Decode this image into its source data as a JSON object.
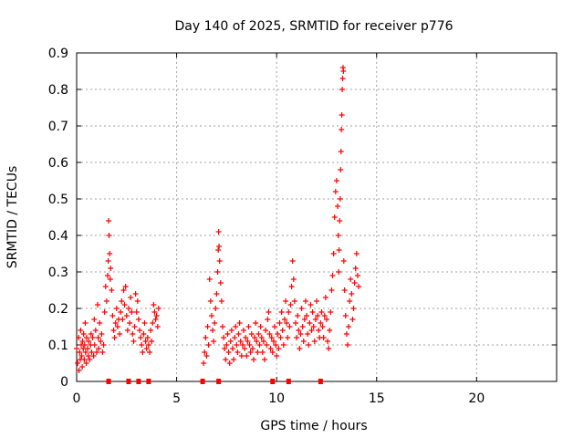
{
  "chart_data": {
    "type": "scatter",
    "title": "Day 140 of 2025, SRMTID for receiver p776",
    "xlabel": "GPS time / hours",
    "ylabel": "SRMTID / TECUs",
    "xlim": [
      0,
      24
    ],
    "ylim": [
      0,
      0.9
    ],
    "xticks": [
      "0",
      "5",
      "10",
      "15",
      "20"
    ],
    "yticks": [
      "0",
      "0.1",
      "0.2",
      "0.3",
      "0.4",
      "0.5",
      "0.6",
      "0.7",
      "0.8",
      "0.9"
    ],
    "grid": true,
    "marker": "plus",
    "color": "#ff0000",
    "series": [
      {
        "name": "SRMTID p776",
        "points": [
          [
            0.0,
            0.09
          ],
          [
            0.05,
            0.05
          ],
          [
            0.1,
            0.12
          ],
          [
            0.12,
            0.03
          ],
          [
            0.15,
            0.08
          ],
          [
            0.18,
            0.06
          ],
          [
            0.2,
            0.14
          ],
          [
            0.23,
            0.1
          ],
          [
            0.25,
            0.07
          ],
          [
            0.28,
            0.04
          ],
          [
            0.3,
            0.11
          ],
          [
            0.33,
            0.09
          ],
          [
            0.35,
            0.13
          ],
          [
            0.38,
            0.06
          ],
          [
            0.4,
            0.1
          ],
          [
            0.43,
            0.16
          ],
          [
            0.45,
            0.08
          ],
          [
            0.48,
            0.05
          ],
          [
            0.5,
            0.12
          ],
          [
            0.55,
            0.09
          ],
          [
            0.58,
            0.07
          ],
          [
            0.6,
            0.11
          ],
          [
            0.65,
            0.06
          ],
          [
            0.7,
            0.1
          ],
          [
            0.72,
            0.13
          ],
          [
            0.75,
            0.08
          ],
          [
            0.8,
            0.12
          ],
          [
            0.85,
            0.07
          ],
          [
            0.88,
            0.17
          ],
          [
            0.9,
            0.1
          ],
          [
            0.95,
            0.14
          ],
          [
            1.0,
            0.08
          ],
          [
            1.05,
            0.21
          ],
          [
            1.08,
            0.12
          ],
          [
            1.1,
            0.09
          ],
          [
            1.15,
            0.16
          ],
          [
            1.2,
            0.11
          ],
          [
            1.25,
            0.13
          ],
          [
            1.3,
            0.08
          ],
          [
            1.35,
            0.1
          ],
          [
            1.4,
            0.19
          ],
          [
            1.45,
            0.26
          ],
          [
            1.5,
            0.22
          ],
          [
            1.55,
            0.29
          ],
          [
            1.58,
            0.33
          ],
          [
            1.6,
            0.44
          ],
          [
            1.62,
            0.4
          ],
          [
            1.65,
            0.35
          ],
          [
            1.68,
            0.28
          ],
          [
            1.7,
            0.31
          ],
          [
            1.75,
            0.25
          ],
          [
            1.8,
            0.18
          ],
          [
            1.85,
            0.14
          ],
          [
            1.9,
            0.12
          ],
          [
            1.95,
            0.16
          ],
          [
            2.0,
            0.2
          ],
          [
            2.05,
            0.15
          ],
          [
            2.1,
            0.17
          ],
          [
            2.15,
            0.13
          ],
          [
            2.2,
            0.19
          ],
          [
            2.25,
            0.22
          ],
          [
            2.3,
            0.17
          ],
          [
            2.35,
            0.25
          ],
          [
            2.4,
            0.21
          ],
          [
            2.45,
            0.26
          ],
          [
            2.5,
            0.18
          ],
          [
            2.55,
            0.14
          ],
          [
            2.6,
            0.2
          ],
          [
            2.65,
            0.16
          ],
          [
            2.7,
            0.23
          ],
          [
            2.75,
            0.19
          ],
          [
            2.8,
            0.13
          ],
          [
            2.85,
            0.11
          ],
          [
            2.9,
            0.15
          ],
          [
            2.95,
            0.24
          ],
          [
            3.0,
            0.19
          ],
          [
            3.05,
            0.22
          ],
          [
            3.1,
            0.17
          ],
          [
            3.15,
            0.14
          ],
          [
            3.2,
            0.12
          ],
          [
            3.25,
            0.1
          ],
          [
            3.3,
            0.08
          ],
          [
            3.35,
            0.13
          ],
          [
            3.4,
            0.16
          ],
          [
            3.45,
            0.11
          ],
          [
            3.5,
            0.09
          ],
          [
            3.55,
            0.12
          ],
          [
            3.6,
            0.1
          ],
          [
            3.65,
            0.08
          ],
          [
            3.7,
            0.14
          ],
          [
            3.75,
            0.11
          ],
          [
            3.8,
            0.16
          ],
          [
            3.85,
            0.21
          ],
          [
            3.9,
            0.19
          ],
          [
            3.95,
            0.17
          ],
          [
            4.0,
            0.18
          ],
          [
            4.05,
            0.15
          ],
          [
            4.1,
            0.2
          ],
          [
            6.35,
            0.05
          ],
          [
            6.4,
            0.08
          ],
          [
            6.45,
            0.12
          ],
          [
            6.5,
            0.07
          ],
          [
            6.55,
            0.15
          ],
          [
            6.6,
            0.1
          ],
          [
            6.65,
            0.28
          ],
          [
            6.7,
            0.22
          ],
          [
            6.75,
            0.18
          ],
          [
            6.8,
            0.14
          ],
          [
            6.85,
            0.11
          ],
          [
            6.9,
            0.16
          ],
          [
            6.95,
            0.2
          ],
          [
            7.0,
            0.24
          ],
          [
            7.05,
            0.3
          ],
          [
            7.08,
            0.36
          ],
          [
            7.1,
            0.41
          ],
          [
            7.12,
            0.37
          ],
          [
            7.15,
            0.33
          ],
          [
            7.2,
            0.27
          ],
          [
            7.25,
            0.22
          ],
          [
            7.3,
            0.15
          ],
          [
            7.35,
            0.12
          ],
          [
            7.4,
            0.09
          ],
          [
            7.45,
            0.06
          ],
          [
            7.5,
            0.1
          ],
          [
            7.55,
            0.13
          ],
          [
            7.6,
            0.08
          ],
          [
            7.65,
            0.05
          ],
          [
            7.7,
            0.11
          ],
          [
            7.75,
            0.14
          ],
          [
            7.8,
            0.09
          ],
          [
            7.85,
            0.06
          ],
          [
            7.9,
            0.12
          ],
          [
            7.95,
            0.15
          ],
          [
            8.0,
            0.1
          ],
          [
            8.05,
            0.08
          ],
          [
            8.1,
            0.13
          ],
          [
            8.15,
            0.16
          ],
          [
            8.2,
            0.11
          ],
          [
            8.25,
            0.07
          ],
          [
            8.3,
            0.1
          ],
          [
            8.35,
            0.14
          ],
          [
            8.4,
            0.09
          ],
          [
            8.45,
            0.12
          ],
          [
            8.5,
            0.07
          ],
          [
            8.55,
            0.11
          ],
          [
            8.6,
            0.15
          ],
          [
            8.65,
            0.1
          ],
          [
            8.7,
            0.08
          ],
          [
            8.75,
            0.13
          ],
          [
            8.8,
            0.09
          ],
          [
            8.85,
            0.06
          ],
          [
            8.9,
            0.12
          ],
          [
            8.95,
            0.16
          ],
          [
            9.0,
            0.11
          ],
          [
            9.05,
            0.08
          ],
          [
            9.1,
            0.13
          ],
          [
            9.15,
            0.1
          ],
          [
            9.2,
            0.15
          ],
          [
            9.25,
            0.12
          ],
          [
            9.3,
            0.08
          ],
          [
            9.35,
            0.11
          ],
          [
            9.4,
            0.06
          ],
          [
            9.45,
            0.14
          ],
          [
            9.5,
            0.1
          ],
          [
            9.55,
            0.17
          ],
          [
            9.6,
            0.19
          ],
          [
            9.65,
            0.13
          ],
          [
            9.7,
            0.09
          ],
          [
            9.75,
            0.12
          ],
          [
            9.8,
            0.08
          ],
          [
            9.85,
            0.11
          ],
          [
            9.9,
            0.15
          ],
          [
            9.95,
            0.1
          ],
          [
            10.0,
            0.07
          ],
          [
            10.05,
            0.13
          ],
          [
            10.1,
            0.09
          ],
          [
            10.15,
            0.16
          ],
          [
            10.2,
            0.12
          ],
          [
            10.25,
            0.19
          ],
          [
            10.3,
            0.14
          ],
          [
            10.35,
            0.1
          ],
          [
            10.4,
            0.17
          ],
          [
            10.45,
            0.22
          ],
          [
            10.5,
            0.16
          ],
          [
            10.55,
            0.12
          ],
          [
            10.6,
            0.19
          ],
          [
            10.65,
            0.15
          ],
          [
            10.7,
            0.21
          ],
          [
            10.75,
            0.26
          ],
          [
            10.8,
            0.33
          ],
          [
            10.85,
            0.28
          ],
          [
            10.9,
            0.22
          ],
          [
            10.95,
            0.16
          ],
          [
            11.0,
            0.12
          ],
          [
            11.05,
            0.18
          ],
          [
            11.1,
            0.14
          ],
          [
            11.15,
            0.09
          ],
          [
            11.2,
            0.13
          ],
          [
            11.25,
            0.2
          ],
          [
            11.3,
            0.15
          ],
          [
            11.35,
            0.11
          ],
          [
            11.4,
            0.17
          ],
          [
            11.45,
            0.22
          ],
          [
            11.5,
            0.18
          ],
          [
            11.55,
            0.13
          ],
          [
            11.6,
            0.1
          ],
          [
            11.65,
            0.16
          ],
          [
            11.7,
            0.21
          ],
          [
            11.75,
            0.14
          ],
          [
            11.8,
            0.19
          ],
          [
            11.85,
            0.15
          ],
          [
            11.9,
            0.11
          ],
          [
            11.95,
            0.17
          ],
          [
            12.0,
            0.22
          ],
          [
            12.05,
            0.18
          ],
          [
            12.1,
            0.14
          ],
          [
            12.15,
            0.12
          ],
          [
            12.2,
            0.16
          ],
          [
            12.25,
            0.19
          ],
          [
            12.3,
            0.15
          ],
          [
            12.35,
            0.12
          ],
          [
            12.4,
            0.18
          ],
          [
            12.45,
            0.23
          ],
          [
            12.5,
            0.17
          ],
          [
            12.55,
            0.11
          ],
          [
            12.6,
            0.09
          ],
          [
            12.65,
            0.14
          ],
          [
            12.7,
            0.19
          ],
          [
            12.75,
            0.25
          ],
          [
            12.8,
            0.29
          ],
          [
            12.85,
            0.35
          ],
          [
            12.9,
            0.45
          ],
          [
            12.95,
            0.52
          ],
          [
            13.0,
            0.55
          ],
          [
            13.05,
            0.48
          ],
          [
            13.08,
            0.4
          ],
          [
            13.1,
            0.3
          ],
          [
            13.12,
            0.36
          ],
          [
            13.15,
            0.44
          ],
          [
            13.18,
            0.5
          ],
          [
            13.2,
            0.58
          ],
          [
            13.22,
            0.63
          ],
          [
            13.24,
            0.69
          ],
          [
            13.26,
            0.73
          ],
          [
            13.28,
            0.8
          ],
          [
            13.3,
            0.83
          ],
          [
            13.32,
            0.86
          ],
          [
            13.34,
            0.85
          ],
          [
            13.36,
            0.33
          ],
          [
            13.4,
            0.25
          ],
          [
            13.45,
            0.18
          ],
          [
            13.5,
            0.13
          ],
          [
            13.55,
            0.1
          ],
          [
            13.6,
            0.15
          ],
          [
            13.65,
            0.22
          ],
          [
            13.7,
            0.28
          ],
          [
            13.75,
            0.24
          ],
          [
            13.8,
            0.17
          ],
          [
            13.85,
            0.2
          ],
          [
            13.9,
            0.27
          ],
          [
            13.95,
            0.31
          ],
          [
            14.0,
            0.35
          ],
          [
            14.05,
            0.29
          ],
          [
            14.1,
            0.26
          ]
        ]
      }
    ],
    "zero_markers_x": [
      1.6,
      2.6,
      3.1,
      3.6,
      6.3,
      7.1,
      9.8,
      10.6,
      12.2
    ]
  }
}
